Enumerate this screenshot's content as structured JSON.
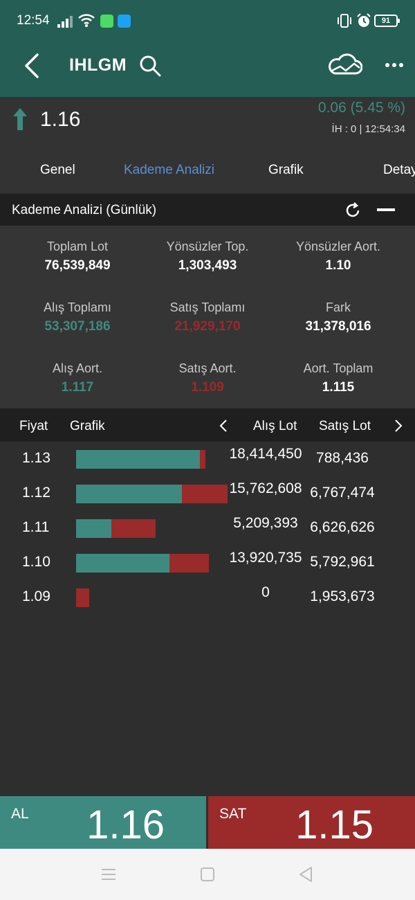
{
  "status_bar": {
    "time": "12:54",
    "battery": "91",
    "icons": [
      "signal-icon",
      "wifi-icon",
      "message-app-icon",
      "twitter-app-icon",
      "vibrate-icon",
      "alarm-icon",
      "battery-icon"
    ]
  },
  "header": {
    "title": "IHLGM",
    "icons": [
      "back-arrow-icon",
      "search-icon",
      "cloud-chart-icon",
      "more-icon"
    ]
  },
  "quote": {
    "price": "1.16",
    "change": "0.06 (5.45 %)",
    "info": "İH : 0 | 12:54:34",
    "direction": "up"
  },
  "tabs": [
    {
      "label": "Genel",
      "active": false
    },
    {
      "label": "Kademe Analizi",
      "active": true
    },
    {
      "label": "Grafik",
      "active": false
    },
    {
      "label": "Detay",
      "active": false
    }
  ],
  "section": {
    "title": "Kademe Analizi (Günlük)"
  },
  "stats": [
    {
      "label": "Toplam Lot",
      "value": "76,539,849",
      "tone": "white"
    },
    {
      "label": "Yönsüzler Top.",
      "value": "1,303,493",
      "tone": "white"
    },
    {
      "label": "Yönsüzler Aort.",
      "value": "1.10",
      "tone": "white"
    },
    {
      "label": "Alış Toplamı",
      "value": "53,307,186",
      "tone": "green"
    },
    {
      "label": "Satış Toplamı",
      "value": "21,929,170",
      "tone": "red"
    },
    {
      "label": "Fark",
      "value": "31,378,016",
      "tone": "white"
    },
    {
      "label": "Alış Aort.",
      "value": "1.117",
      "tone": "green"
    },
    {
      "label": "Satış Aort.",
      "value": "1.109",
      "tone": "red"
    },
    {
      "label": "Aort. Toplam",
      "value": "1.115",
      "tone": "white"
    }
  ],
  "table": {
    "headers": {
      "price": "Fiyat",
      "chart": "Grafik",
      "buy_lot": "Alış Lot",
      "sell_lot": "Satış Lot"
    },
    "rows": [
      {
        "price": "1.13",
        "buy_lot": "18,414,450",
        "sell_lot": "788,436",
        "buy_value": 18414450,
        "sell_value": 788436
      },
      {
        "price": "1.12",
        "buy_lot": "15,762,608",
        "sell_lot": "6,767,474",
        "buy_value": 15762608,
        "sell_value": 6767474
      },
      {
        "price": "1.11",
        "buy_lot": "5,209,393",
        "sell_lot": "6,626,626",
        "buy_value": 5209393,
        "sell_value": 6626626
      },
      {
        "price": "1.10",
        "buy_lot": "13,920,735",
        "sell_lot": "5,792,961",
        "buy_value": 13920735,
        "sell_value": 5792961
      },
      {
        "price": "1.09",
        "buy_lot": "0",
        "sell_lot": "1,953,673",
        "buy_value": 0,
        "sell_value": 1953673
      }
    ]
  },
  "trade": {
    "buy_label": "AL",
    "buy_price": "1.16",
    "sell_label": "SAT",
    "sell_price": "1.15"
  },
  "colors": {
    "header_bg": "#255e55",
    "buy_green": "#3f8a80",
    "sell_red": "#9b2a2a",
    "active_tab": "#5a8fd6"
  }
}
